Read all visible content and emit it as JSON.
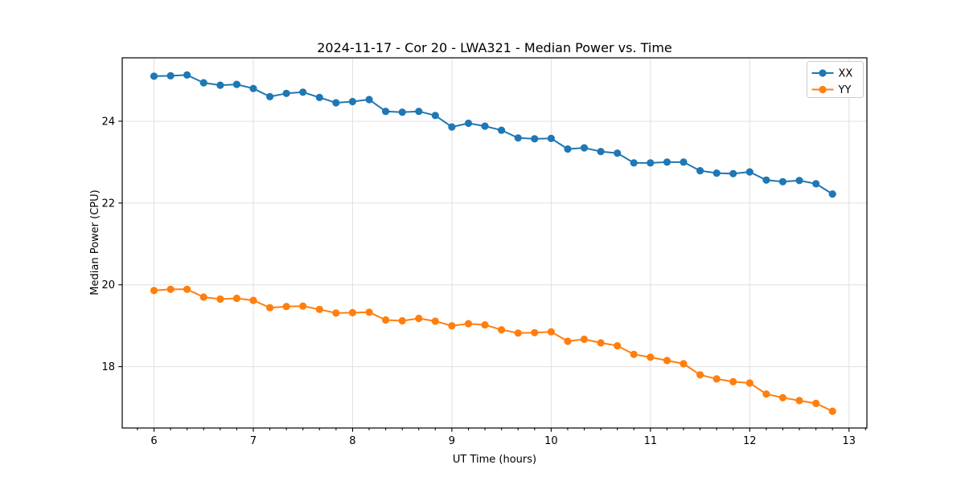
{
  "chart_data": {
    "type": "line",
    "title": "2024-11-17 - Cor 20 - LWA321 - Median Power vs. Time",
    "xlabel": "UT Time (hours)",
    "ylabel": "Median Power (CPU)",
    "xlim": [
      5.68,
      13.18
    ],
    "ylim": [
      16.5,
      25.55
    ],
    "xticks": [
      6,
      7,
      8,
      9,
      10,
      11,
      12,
      13
    ],
    "yticks": [
      18,
      20,
      22,
      24
    ],
    "x_minor_step": 0.16667,
    "grid": true,
    "legend_position": "upper right",
    "x": [
      6.0,
      6.167,
      6.333,
      6.5,
      6.667,
      6.833,
      7.0,
      7.167,
      7.333,
      7.5,
      7.667,
      7.833,
      8.0,
      8.167,
      8.333,
      8.5,
      8.667,
      8.833,
      9.0,
      9.167,
      9.333,
      9.5,
      9.667,
      9.833,
      10.0,
      10.167,
      10.333,
      10.5,
      10.667,
      10.833,
      11.0,
      11.167,
      11.333,
      11.5,
      11.667,
      11.833,
      12.0,
      12.167,
      12.333,
      12.5,
      12.667,
      12.833
    ],
    "series": [
      {
        "name": "XX",
        "color": "#1f77b4",
        "marker": "circle",
        "values": [
          25.1,
          25.11,
          25.13,
          24.94,
          24.88,
          24.9,
          24.8,
          24.6,
          24.68,
          24.71,
          24.58,
          24.45,
          24.48,
          24.53,
          24.24,
          24.22,
          24.24,
          24.14,
          23.86,
          23.95,
          23.88,
          23.78,
          23.59,
          23.57,
          23.58,
          23.32,
          23.35,
          23.26,
          23.22,
          22.98,
          22.98,
          23.0,
          23.0,
          22.79,
          22.73,
          22.72,
          22.76,
          22.56,
          22.52,
          22.55,
          22.47,
          22.22
        ]
      },
      {
        "name": "YY",
        "color": "#ff7f0e",
        "marker": "circle",
        "values": [
          19.86,
          19.89,
          19.89,
          19.7,
          19.65,
          19.67,
          19.62,
          19.44,
          19.47,
          19.48,
          19.4,
          19.31,
          19.32,
          19.33,
          19.14,
          19.12,
          19.18,
          19.11,
          19.0,
          19.05,
          19.02,
          18.9,
          18.82,
          18.83,
          18.85,
          18.62,
          18.67,
          18.58,
          18.51,
          18.3,
          18.23,
          18.15,
          18.07,
          17.8,
          17.7,
          17.63,
          17.6,
          17.33,
          17.24,
          17.17,
          17.1,
          16.91
        ]
      }
    ]
  }
}
